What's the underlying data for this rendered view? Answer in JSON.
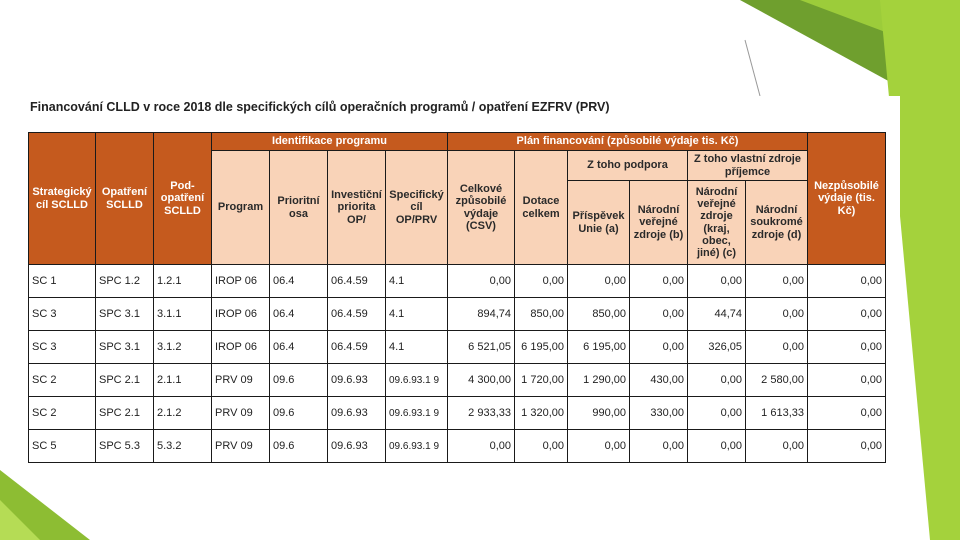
{
  "theme": {
    "green_light": "#9ccc3a",
    "green_dark": "#6a9a2c",
    "header_dark": "#c55a1e",
    "header_light": "#f9d3b8"
  },
  "caption": "Financování CLLD v roce 2018 dle specifických cílů operačních programů / opatření EZFRV (PRV)",
  "headers": {
    "strategicky_cil": "Strategický cíl SCLLD",
    "opatreni": "Opatření SCLLD",
    "podopatreni": "Pod-opatření SCLLD",
    "identifikace": "Identifikace programu",
    "program": "Program",
    "prioritni_osa": "Prioritní osa",
    "investicni_priorita": "Investiční priorita OP/",
    "specificky_cil": "Specifický cíl OP/PRV",
    "plan": "Plán financování (způsobilé výdaje tis. Kč)",
    "celkove": "Celkové způsobilé výdaje (CSV)",
    "dotace": "Dotace celkem",
    "z_toho_podpora": "Z toho podpora",
    "z_toho_vlastni": "Z toho vlastní zdroje příjemce",
    "prispevek": "Příspěvek Unie (a)",
    "narodni_verejne_b": "Národní veřejné zdroje (b)",
    "narodni_verejne_c": "Národní veřejné zdroje (kraj, obec, jiné) (c)",
    "narodni_soukrome": "Národní soukromé zdroje (d)",
    "nezpusobile": "Nezpůsobilé výdaje (tis. Kč)"
  },
  "rows": [
    [
      "SC 1",
      "SPC 1.2",
      "1.2.1",
      "IROP 06",
      "06.4",
      "06.4.59",
      "4.1",
      "0,00",
      "0,00",
      "0,00",
      "0,00",
      "0,00",
      "0,00",
      "0,00"
    ],
    [
      "SC 3",
      "SPC 3.1",
      "3.1.1",
      "IROP 06",
      "06.4",
      "06.4.59",
      "4.1",
      "894,74",
      "850,00",
      "850,00",
      "0,00",
      "44,74",
      "0,00",
      "0,00"
    ],
    [
      "SC 3",
      "SPC 3.1",
      "3.1.2",
      "IROP 06",
      "06.4",
      "06.4.59",
      "4.1",
      "6 521,05",
      "6 195,00",
      "6 195,00",
      "0,00",
      "326,05",
      "0,00",
      "0,00"
    ],
    [
      "SC 2",
      "SPC 2.1",
      "2.1.1",
      "PRV 09",
      "09.6",
      "09.6.93",
      "09.6.93.1 9",
      "4 300,00",
      "1 720,00",
      "1 290,00",
      "430,00",
      "0,00",
      "2 580,00",
      "0,00"
    ],
    [
      "SC 2",
      "SPC 2.1",
      "2.1.2",
      "PRV 09",
      "09.6",
      "09.6.93",
      "09.6.93.1 9",
      "2 933,33",
      "1 320,00",
      "990,00",
      "330,00",
      "0,00",
      "1 613,33",
      "0,00"
    ],
    [
      "SC 5",
      "SPC 5.3",
      "5.3.2",
      "PRV 09",
      "09.6",
      "09.6.93",
      "09.6.93.1 9",
      "0,00",
      "0,00",
      "0,00",
      "0,00",
      "0,00",
      "0,00",
      "0,00"
    ]
  ]
}
